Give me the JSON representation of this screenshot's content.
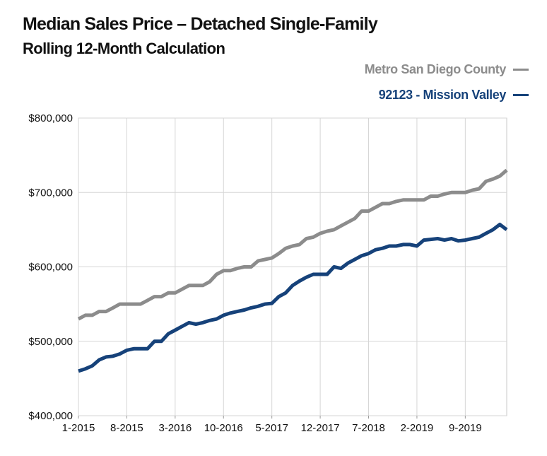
{
  "chart_data": {
    "type": "line",
    "title": "Median Sales Price – Detached Single-Family",
    "subtitle": "Rolling 12-Month Calculation",
    "ylim": [
      400000,
      800000
    ],
    "yticks": [
      "$400,000",
      "$500,000",
      "$600,000",
      "$700,000",
      "$800,000"
    ],
    "ytick_values": [
      400000,
      500000,
      600000,
      700000,
      800000
    ],
    "xtick_labels": [
      "1-2015",
      "8-2015",
      "3-2016",
      "10-2016",
      "5-2017",
      "12-2017",
      "7-2018",
      "2-2019",
      "9-2019"
    ],
    "xtick_index": [
      0,
      7,
      14,
      21,
      28,
      35,
      42,
      49,
      56
    ],
    "n_points": 63,
    "grid": true,
    "legend_position": "top-right",
    "series": [
      {
        "name": "Metro San Diego County",
        "color": "#8c8c8c",
        "values": [
          530000,
          535000,
          535000,
          540000,
          540000,
          545000,
          550000,
          550000,
          550000,
          550000,
          555000,
          560000,
          560000,
          565000,
          565000,
          570000,
          575000,
          575000,
          575000,
          580000,
          590000,
          595000,
          595000,
          598000,
          600000,
          600000,
          608000,
          610000,
          612000,
          618000,
          625000,
          628000,
          630000,
          638000,
          640000,
          645000,
          648000,
          650000,
          655000,
          660000,
          665000,
          675000,
          675000,
          680000,
          685000,
          685000,
          688000,
          690000,
          690000,
          690000,
          690000,
          695000,
          695000,
          698000,
          700000,
          700000,
          700000,
          703000,
          705000,
          715000,
          718000,
          722000,
          730000
        ]
      },
      {
        "name": "92123 - Mission Valley",
        "color": "#16427a",
        "values": [
          460000,
          463000,
          467000,
          475000,
          479000,
          480000,
          483000,
          488000,
          490000,
          490000,
          490000,
          500000,
          500000,
          510000,
          515000,
          520000,
          525000,
          523000,
          525000,
          528000,
          530000,
          535000,
          538000,
          540000,
          542000,
          545000,
          547000,
          550000,
          551000,
          560000,
          565000,
          575000,
          581000,
          586000,
          590000,
          590000,
          590000,
          600000,
          598000,
          605000,
          610000,
          615000,
          618000,
          623000,
          625000,
          628000,
          628000,
          630000,
          630000,
          628000,
          636000,
          637000,
          638000,
          636000,
          638000,
          635000,
          636000,
          638000,
          640000,
          645000,
          650000,
          657000,
          650000
        ]
      }
    ]
  }
}
